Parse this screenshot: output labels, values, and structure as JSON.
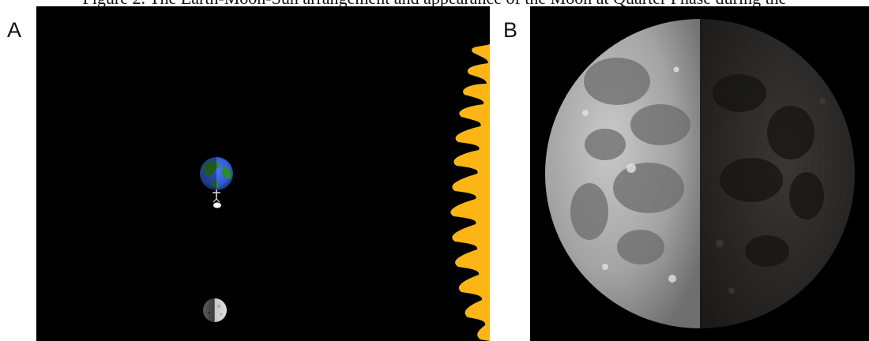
{
  "caption": {
    "text": "Figure 2. The Earth-Moon-Sun arrangement and appearance of the Moon at Quarter Phase during the"
  },
  "panels": [
    {
      "label": "A",
      "content": [
        "earth",
        "observer",
        "moon",
        "sun"
      ]
    },
    {
      "label": "B",
      "content": [
        "half-lit moon"
      ]
    }
  ],
  "colors": {
    "space": "#000000",
    "sun": "#FDB515",
    "earth_ocean": "#2E5BCB",
    "earth_land": "#2E8B2E",
    "moon_lit": "#9c9c9c",
    "moon_dark": "#2e2c2a"
  }
}
